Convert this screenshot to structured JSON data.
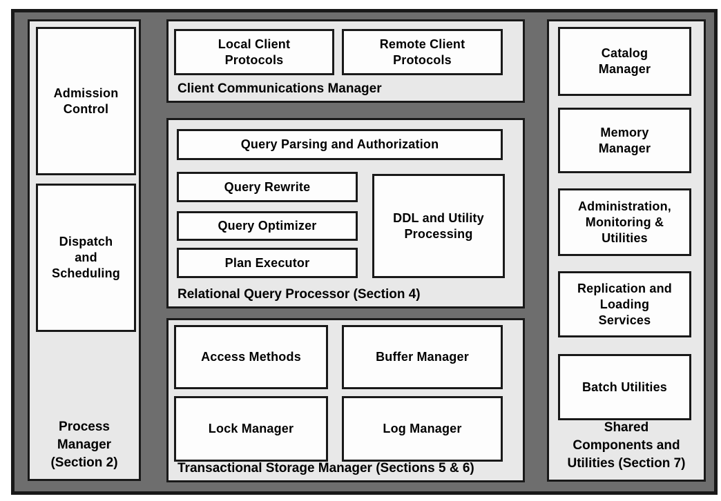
{
  "colors": {
    "outer_background": "#6e6e6e",
    "panel_background": "#e8e8e8",
    "box_background": "#fdfdfd",
    "border": "#191919",
    "text": "#000000",
    "page_margin": "#ffffff"
  },
  "panels": {
    "process_manager": {
      "label": "Process\nManager\n(Section 2)",
      "boxes": [
        "Admission\nControl",
        "Dispatch\nand\nScheduling"
      ]
    },
    "client_communications": {
      "label": "Client Communications Manager",
      "boxes": [
        "Local Client\nProtocols",
        "Remote Client\nProtocols"
      ]
    },
    "relational_query_processor": {
      "label": "Relational Query Processor (Section 4)",
      "boxes": [
        "Query Parsing and Authorization",
        "Query Rewrite",
        "Query Optimizer",
        "Plan Executor",
        "DDL and Utility\nProcessing"
      ]
    },
    "transactional_storage_manager": {
      "label": "Transactional Storage Manager (Sections 5 & 6)",
      "boxes": [
        "Access Methods",
        "Buffer Manager",
        "Lock Manager",
        "Log Manager"
      ]
    },
    "shared_components": {
      "label": "Shared\nComponents and\nUtilities (Section 7)",
      "boxes": [
        "Catalog\nManager",
        "Memory\nManager",
        "Administration,\nMonitoring &\nUtilities",
        "Replication and\nLoading\nServices",
        "Batch Utilities"
      ]
    }
  }
}
